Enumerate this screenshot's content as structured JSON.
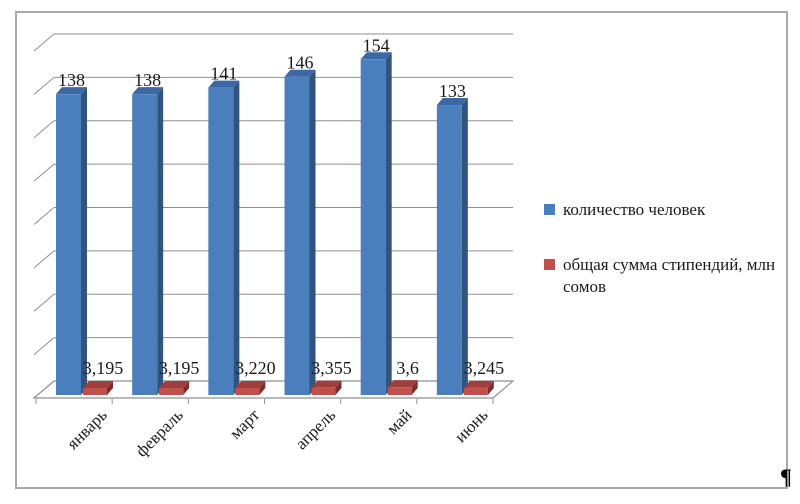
{
  "chart_data": {
    "type": "bar",
    "style": "3d-clustered-column",
    "categories": [
      "январь",
      "февраль",
      "март",
      "апрель",
      "май",
      "июнь"
    ],
    "series": [
      {
        "name": "количество человек",
        "color": "#4b7ebc",
        "color_side": "#31547f",
        "color_top": "#3c68a5",
        "values": [
          138,
          138,
          141,
          146,
          154,
          133
        ],
        "labels": [
          "138",
          "138",
          "141",
          "146",
          "154",
          "133"
        ]
      },
      {
        "name": "общая сумма стипендий, млн сомов",
        "color": "#c0504d",
        "color_side": "#7e2d2b",
        "color_top": "#9e3f3c",
        "values": [
          3.195,
          3.195,
          3.22,
          3.355,
          3.6,
          3.245
        ],
        "labels": [
          "3,195",
          "3,195",
          "3,220",
          "3,355",
          "3,6",
          "3,245"
        ]
      }
    ],
    "title": "",
    "xlabel": "",
    "ylabel": "",
    "ylim": [
      0,
      160
    ],
    "y_gridline_step": 20,
    "grid": true,
    "y_axis_tick_labels_visible": false,
    "legend_position": "right",
    "gridline_color": "#8f8f8f",
    "label_color": "#1a1a1a"
  },
  "legend": {
    "items": [
      {
        "label": "количество человек",
        "color": "#4b7ebc"
      },
      {
        "label": "общая сумма стипендий, млн сомов",
        "color": "#c0504d"
      }
    ]
  },
  "page": {
    "paragraph_mark": "¶"
  }
}
